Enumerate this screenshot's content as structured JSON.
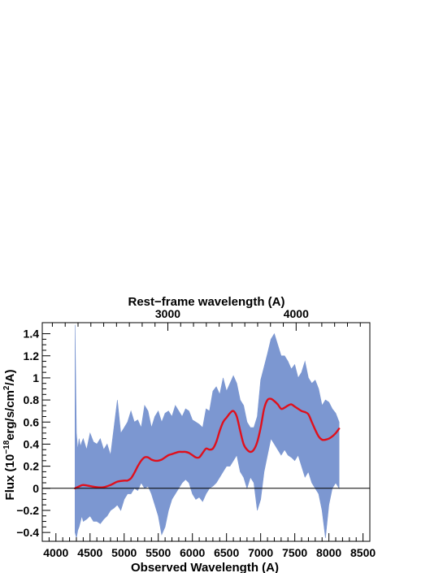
{
  "chart_data": {
    "type": "line",
    "top_axis_title": "Rest−frame wavelength (A)",
    "top_ticks": [
      {
        "label": "3000",
        "observed": 5640
      },
      {
        "label": "4000",
        "observed": 7520
      }
    ],
    "xlabel": "Observed Wavelength (A)",
    "ylabel": "Flux (10^-18 erg/s/cm^2/A)",
    "ylabel_parts": {
      "pre": "Flux (10",
      "exp1": "−18",
      "mid": "erg/s/cm",
      "exp2": "2",
      "post": "/A)"
    },
    "xlim": [
      3800,
      8600
    ],
    "ylim": [
      -0.48,
      1.5
    ],
    "x_ticks": [
      4000,
      4500,
      5000,
      5500,
      6000,
      6500,
      7000,
      7500,
      8000,
      8500
    ],
    "y_ticks": [
      {
        "value": -0.4,
        "label": "−0.4"
      },
      {
        "value": -0.2,
        "label": "−0.2"
      },
      {
        "value": 0,
        "label": "0"
      },
      {
        "value": 0.2,
        "label": "0.2"
      },
      {
        "value": 0.4,
        "label": "0.4"
      },
      {
        "value": 0.6,
        "label": "0.6"
      },
      {
        "value": 0.8,
        "label": "0.8"
      },
      {
        "value": 1.0,
        "label": "1"
      },
      {
        "value": 1.2,
        "label": "1.2"
      },
      {
        "value": 1.4,
        "label": "1.4"
      }
    ],
    "zero_line": true,
    "series": [
      {
        "kind": "band",
        "color": "#7c97d1",
        "x": [
          4280,
          4300,
          4320,
          4340,
          4360,
          4380,
          4400,
          4450,
          4500,
          4550,
          4600,
          4650,
          4700,
          4750,
          4800,
          4850,
          4900,
          4950,
          5000,
          5050,
          5100,
          5150,
          5200,
          5250,
          5300,
          5350,
          5400,
          5450,
          5500,
          5550,
          5600,
          5650,
          5700,
          5750,
          5800,
          5850,
          5900,
          5950,
          6000,
          6050,
          6100,
          6150,
          6200,
          6250,
          6300,
          6350,
          6400,
          6450,
          6500,
          6550,
          6600,
          6650,
          6700,
          6750,
          6800,
          6850,
          6900,
          6950,
          7000,
          7050,
          7100,
          7150,
          7200,
          7250,
          7300,
          7350,
          7400,
          7450,
          7500,
          7550,
          7600,
          7650,
          7700,
          7750,
          7800,
          7850,
          7900,
          7950,
          8000,
          8050,
          8100,
          8150
        ],
        "upper": [
          1.48,
          0.5,
          0.35,
          0.45,
          0.38,
          0.42,
          0.45,
          0.35,
          0.5,
          0.42,
          0.4,
          0.45,
          0.35,
          0.4,
          0.3,
          0.55,
          0.8,
          0.5,
          0.55,
          0.6,
          0.7,
          0.6,
          0.62,
          0.55,
          0.75,
          0.7,
          0.55,
          0.65,
          0.7,
          0.6,
          0.68,
          0.7,
          0.65,
          0.75,
          0.7,
          0.65,
          0.72,
          0.7,
          0.62,
          0.6,
          0.58,
          0.55,
          0.72,
          0.7,
          0.88,
          0.92,
          0.85,
          1.0,
          0.88,
          0.95,
          1.02,
          0.95,
          0.8,
          0.75,
          0.6,
          0.55,
          0.55,
          0.65,
          0.98,
          1.1,
          1.22,
          1.35,
          1.4,
          1.3,
          1.2,
          1.2,
          1.15,
          1.08,
          1.12,
          1.0,
          1.05,
          1.15,
          1.0,
          0.95,
          0.98,
          0.9,
          0.75,
          0.8,
          0.78,
          0.72,
          0.68,
          0.6
        ],
        "lower": [
          -0.4,
          -0.45,
          -0.38,
          -0.35,
          -0.3,
          -0.25,
          -0.3,
          -0.28,
          -0.25,
          -0.3,
          -0.3,
          -0.32,
          -0.28,
          -0.25,
          -0.2,
          -0.18,
          -0.15,
          -0.2,
          -0.1,
          -0.05,
          -0.05,
          0.0,
          -0.02,
          0.05,
          0.0,
          0.02,
          -0.05,
          -0.15,
          -0.25,
          -0.42,
          -0.35,
          -0.2,
          -0.1,
          -0.05,
          0.0,
          0.05,
          0.08,
          0.05,
          -0.05,
          -0.1,
          -0.08,
          -0.12,
          -0.05,
          0.0,
          0.02,
          0.05,
          0.1,
          0.15,
          0.2,
          0.2,
          0.25,
          0.3,
          0.15,
          0.1,
          0.0,
          0.1,
          0.05,
          -0.2,
          -0.1,
          0.15,
          0.3,
          0.45,
          0.4,
          0.35,
          0.3,
          0.35,
          0.3,
          0.28,
          0.25,
          0.3,
          0.2,
          0.1,
          0.15,
          0.05,
          0.0,
          -0.05,
          -0.2,
          -0.45,
          -0.15,
          0.0,
          0.05,
          0.0
        ]
      },
      {
        "kind": "line",
        "color": "#e0101c",
        "x": [
          4280,
          4350,
          4400,
          4500,
          4600,
          4700,
          4800,
          4900,
          5000,
          5050,
          5100,
          5150,
          5200,
          5250,
          5300,
          5350,
          5400,
          5450,
          5500,
          5550,
          5600,
          5650,
          5700,
          5750,
          5800,
          5850,
          5900,
          5950,
          6000,
          6050,
          6100,
          6150,
          6200,
          6250,
          6300,
          6350,
          6400,
          6450,
          6500,
          6550,
          6600,
          6650,
          6700,
          6750,
          6800,
          6850,
          6900,
          6950,
          7000,
          7050,
          7100,
          7150,
          7200,
          7250,
          7300,
          7350,
          7400,
          7450,
          7500,
          7550,
          7600,
          7650,
          7700,
          7750,
          7800,
          7850,
          7900,
          7950,
          8000,
          8050,
          8100,
          8150
        ],
        "y": [
          0.0,
          0.02,
          0.03,
          0.02,
          0.01,
          0.01,
          0.03,
          0.06,
          0.07,
          0.07,
          0.09,
          0.14,
          0.2,
          0.25,
          0.28,
          0.28,
          0.26,
          0.25,
          0.25,
          0.26,
          0.28,
          0.3,
          0.31,
          0.32,
          0.33,
          0.33,
          0.33,
          0.32,
          0.3,
          0.28,
          0.28,
          0.32,
          0.36,
          0.35,
          0.36,
          0.42,
          0.52,
          0.6,
          0.64,
          0.68,
          0.7,
          0.65,
          0.52,
          0.4,
          0.35,
          0.33,
          0.35,
          0.42,
          0.55,
          0.72,
          0.8,
          0.81,
          0.79,
          0.76,
          0.72,
          0.73,
          0.75,
          0.76,
          0.74,
          0.72,
          0.7,
          0.69,
          0.67,
          0.6,
          0.53,
          0.47,
          0.44,
          0.44,
          0.45,
          0.47,
          0.5,
          0.54
        ]
      }
    ]
  }
}
